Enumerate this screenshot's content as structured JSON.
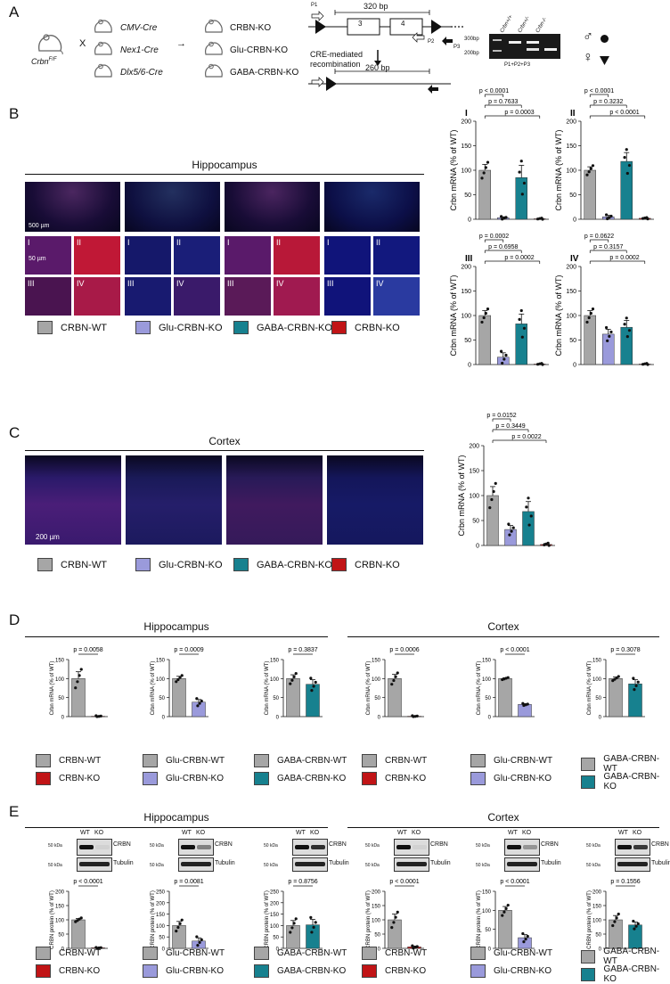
{
  "panels": {
    "A": "A",
    "B": "B",
    "C": "C",
    "D": "D",
    "E": "E"
  },
  "colors": {
    "wt": "#a6a6a6",
    "glu": "#9a9adb",
    "gaba": "#17818f",
    "ko": "#c11416"
  },
  "panelA": {
    "floxed": "Crbn",
    "floxed_sup": "F/F",
    "cross": "X",
    "arrow": "→",
    "drivers": [
      "CMV-Cre",
      "Nex1-Cre",
      "Dlx5/6-Cre"
    ],
    "lines": [
      "CRBN-KO",
      "Glu-CRBN-KO",
      "GABA-CRBN-KO"
    ],
    "size_top": "320 bp",
    "size_bottom": "260 bp",
    "exons": [
      "3",
      "4"
    ],
    "primers": [
      "P1",
      "P2",
      "P3"
    ],
    "recombination": "CRE-mediated\nrecombination",
    "gel_ladder": [
      "300bp",
      "200bp"
    ],
    "gel_lanes": [
      "Crbn+/+",
      "Crbn+/-",
      "Crbn-/-"
    ],
    "gel_caption": "P1+P2+P3",
    "sex_male": "♂",
    "sex_female": "♀"
  },
  "panelB": {
    "title": "Hippocampus",
    "scale_big": "500 µm",
    "scale_small": "50 µm",
    "roi": [
      "I",
      "II",
      "III",
      "IV"
    ]
  },
  "legend": [
    "CRBN-WT",
    "Glu-CRBN-KO",
    "GABA-CRBN-KO",
    "CRBN-KO"
  ],
  "ylabel_mrna": "Crbn mRNA (% of WT)",
  "ylabel_protein": "CRBN protein (% of WT)",
  "chart_data": [
    {
      "id": "B-I",
      "type": "bar",
      "title": "I",
      "categories": [
        "CRBN-WT",
        "Glu-CRBN-KO",
        "GABA-CRBN-KO",
        "CRBN-KO"
      ],
      "values": [
        100,
        3,
        85,
        1
      ],
      "errors": [
        12,
        2,
        25,
        1
      ],
      "ylim": [
        0,
        200
      ],
      "yticks": [
        0,
        50,
        100,
        150,
        200
      ],
      "pvalues": [
        "p < 0.0001",
        "p = 0.7633",
        "p = 0.0003"
      ]
    },
    {
      "id": "B-II",
      "type": "bar",
      "title": "II",
      "categories": [
        "CRBN-WT",
        "Glu-CRBN-KO",
        "GABA-CRBN-KO",
        "CRBN-KO"
      ],
      "values": [
        100,
        5,
        118,
        2
      ],
      "errors": [
        7,
        3,
        18,
        1
      ],
      "ylim": [
        0,
        200
      ],
      "yticks": [
        0,
        50,
        100,
        150,
        200
      ],
      "pvalues": [
        "p < 0.0001",
        "p = 0.3232",
        "p < 0.0001"
      ]
    },
    {
      "id": "B-III",
      "type": "bar",
      "title": "III",
      "categories": [
        "CRBN-WT",
        "Glu-CRBN-KO",
        "GABA-CRBN-KO",
        "CRBN-KO"
      ],
      "values": [
        100,
        15,
        83,
        1
      ],
      "errors": [
        10,
        9,
        20,
        1
      ],
      "ylim": [
        0,
        200
      ],
      "yticks": [
        0,
        50,
        100,
        150,
        200
      ],
      "pvalues": [
        "p = 0.0002",
        "p = 0.6958",
        "p = 0.0002"
      ]
    },
    {
      "id": "B-IV",
      "type": "bar",
      "title": "IV",
      "categories": [
        "CRBN-WT",
        "Glu-CRBN-KO",
        "GABA-CRBN-KO",
        "CRBN-KO"
      ],
      "values": [
        100,
        62,
        76,
        1
      ],
      "errors": [
        10,
        10,
        14,
        1
      ],
      "ylim": [
        0,
        200
      ],
      "yticks": [
        0,
        50,
        100,
        150,
        200
      ],
      "pvalues": [
        "p = 0.0622",
        "p = 0.3157",
        "p = 0.0002"
      ]
    },
    {
      "id": "C",
      "type": "bar",
      "categories": [
        "CRBN-WT",
        "Glu-CRBN-KO",
        "GABA-CRBN-KO",
        "CRBN-KO"
      ],
      "values": [
        100,
        32,
        68,
        2
      ],
      "errors": [
        18,
        8,
        20,
        2
      ],
      "ylim": [
        0,
        200
      ],
      "yticks": [
        0,
        50,
        100,
        150,
        200
      ],
      "pvalues": [
        "p = 0.0152",
        "p = 0.3449",
        "p = 0.0022"
      ]
    },
    {
      "id": "D-H1",
      "type": "bar",
      "categories": [
        "CRBN-WT",
        "CRBN-KO"
      ],
      "values": [
        100,
        1
      ],
      "errors": [
        18,
        1
      ],
      "ylim": [
        0,
        150
      ],
      "yticks": [
        0,
        50,
        100,
        150
      ],
      "pvalues": [
        "p = 0.0058"
      ]
    },
    {
      "id": "D-H2",
      "type": "bar",
      "categories": [
        "Glu-CRBN-WT",
        "Glu-CRBN-KO"
      ],
      "values": [
        100,
        38
      ],
      "errors": [
        6,
        7
      ],
      "ylim": [
        0,
        150
      ],
      "yticks": [
        0,
        50,
        100,
        150
      ],
      "pvalues": [
        "p = 0.0009"
      ]
    },
    {
      "id": "D-H3",
      "type": "bar",
      "categories": [
        "GABA-CRBN-WT",
        "GABA-CRBN-KO"
      ],
      "values": [
        100,
        85
      ],
      "errors": [
        10,
        12
      ],
      "ylim": [
        0,
        150
      ],
      "yticks": [
        0,
        50,
        100,
        150
      ],
      "pvalues": [
        "p = 0.3837"
      ]
    },
    {
      "id": "D-C1",
      "type": "bar",
      "categories": [
        "CRBN-WT",
        "CRBN-KO"
      ],
      "values": [
        100,
        1
      ],
      "errors": [
        11,
        1
      ],
      "ylim": [
        0,
        150
      ],
      "yticks": [
        0,
        50,
        100,
        150
      ],
      "pvalues": [
        "p = 0.0006"
      ]
    },
    {
      "id": "D-C2",
      "type": "bar",
      "categories": [
        "Glu-CRBN-WT",
        "Glu-CRBN-KO"
      ],
      "values": [
        100,
        32
      ],
      "errors": [
        2,
        2
      ],
      "ylim": [
        0,
        150
      ],
      "yticks": [
        0,
        50,
        100,
        150
      ],
      "pvalues": [
        "p < 0.0001"
      ]
    },
    {
      "id": "D-C3",
      "type": "bar",
      "categories": [
        "GABA-CRBN-WT",
        "GABA-CRBN-KO"
      ],
      "values": [
        100,
        86
      ],
      "errors": [
        4,
        11
      ],
      "ylim": [
        0,
        150
      ],
      "yticks": [
        0,
        50,
        100,
        150
      ],
      "pvalues": [
        "p = 0.3078"
      ]
    },
    {
      "id": "E-H1",
      "type": "bar",
      "categories": [
        "CRBN-WT",
        "CRBN-KO"
      ],
      "values": [
        100,
        2
      ],
      "errors": [
        5,
        1
      ],
      "ylim": [
        0,
        200
      ],
      "yticks": [
        0,
        50,
        100,
        150,
        200
      ],
      "pvalues": [
        "p < 0.0001"
      ]
    },
    {
      "id": "E-H2",
      "type": "bar",
      "categories": [
        "Glu-CRBN-WT",
        "Glu-CRBN-KO"
      ],
      "values": [
        100,
        32
      ],
      "errors": [
        18,
        14
      ],
      "ylim": [
        0,
        250
      ],
      "yticks": [
        0,
        50,
        100,
        150,
        200,
        250
      ],
      "pvalues": [
        "p = 0.0081"
      ]
    },
    {
      "id": "E-H3",
      "type": "bar",
      "categories": [
        "GABA-CRBN-WT",
        "GABA-CRBN-KO"
      ],
      "values": [
        100,
        103
      ],
      "errors": [
        22,
        24
      ],
      "ylim": [
        0,
        250
      ],
      "yticks": [
        0,
        50,
        100,
        150,
        200,
        250
      ],
      "pvalues": [
        "p = 0.8756"
      ]
    },
    {
      "id": "E-C1",
      "type": "bar",
      "categories": [
        "CRBN-WT",
        "CRBN-KO"
      ],
      "values": [
        100,
        5
      ],
      "errors": [
        20,
        3
      ],
      "ylim": [
        0,
        200
      ],
      "yticks": [
        0,
        50,
        100,
        150,
        200
      ],
      "pvalues": [
        "p < 0.0001"
      ]
    },
    {
      "id": "E-C2",
      "type": "bar",
      "categories": [
        "Glu-CRBN-WT",
        "Glu-CRBN-KO"
      ],
      "values": [
        100,
        28
      ],
      "errors": [
        10,
        8
      ],
      "ylim": [
        0,
        150
      ],
      "yticks": [
        0,
        50,
        100,
        150
      ],
      "pvalues": [
        "p < 0.0001"
      ]
    },
    {
      "id": "E-C3",
      "type": "bar",
      "categories": [
        "GABA-CRBN-WT",
        "GABA-CRBN-KO"
      ],
      "values": [
        100,
        82
      ],
      "errors": [
        15,
        10
      ],
      "ylim": [
        0,
        200
      ],
      "yticks": [
        0,
        50,
        100,
        150,
        200
      ],
      "pvalues": [
        "p = 0.1556"
      ]
    }
  ],
  "panelD": {
    "left_title": "Hippocampus",
    "right_title": "Cortex"
  },
  "panelE": {
    "left_title": "Hippocampus",
    "right_title": "Cortex",
    "wt": "WT",
    "ko": "KO",
    "kda": "50 kDa",
    "crbn": "CRBN",
    "tubulin": "Tubulin"
  },
  "panelC": {
    "title": "Cortex",
    "scale": "200 µm"
  },
  "pairLegends": [
    [
      "CRBN-WT",
      "CRBN-KO"
    ],
    [
      "Glu-CRBN-WT",
      "Glu-CRBN-KO"
    ],
    [
      "GABA-CRBN-WT",
      "GABA-CRBN-KO"
    ]
  ]
}
